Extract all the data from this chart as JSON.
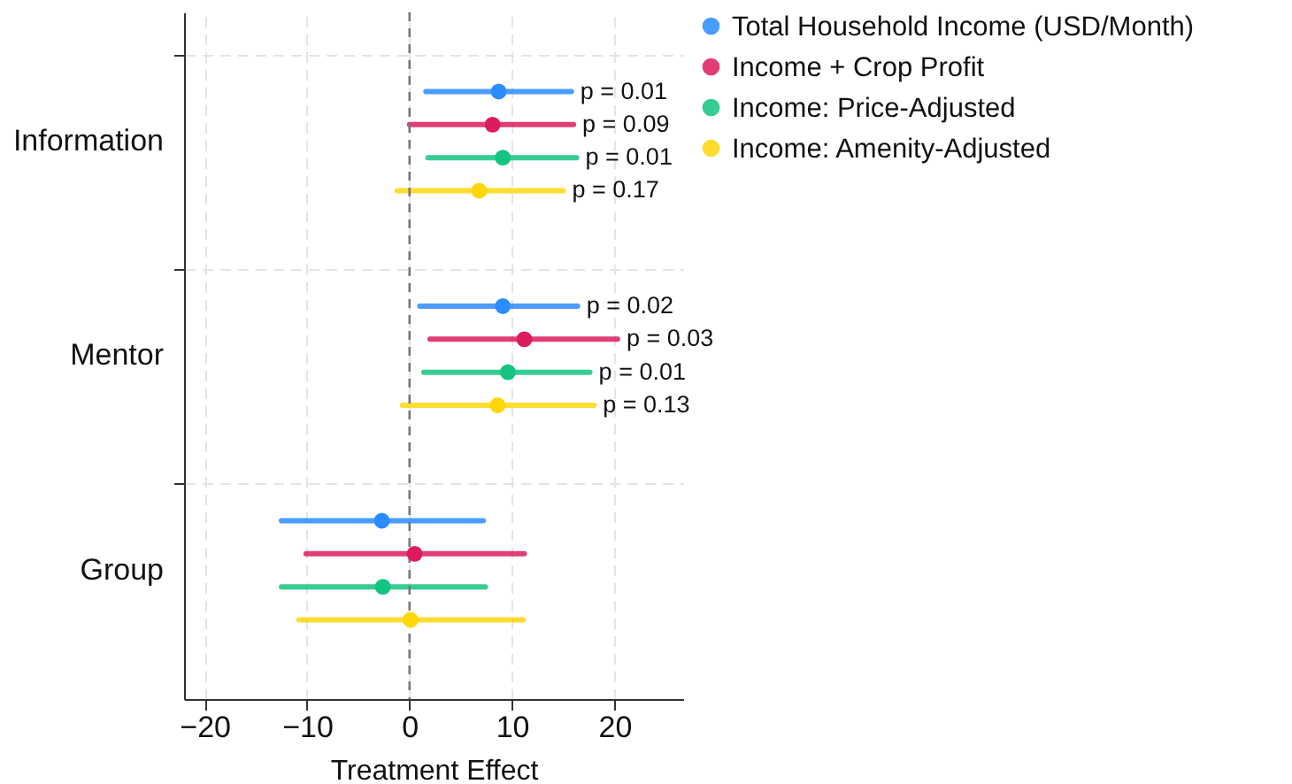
{
  "chart_data": {
    "type": "scatter",
    "orientation": "horizontal",
    "xlabel": "Treatment Effect",
    "categories": [
      "Information",
      "Mentor",
      "Group"
    ],
    "xlim": [
      -22,
      26.7
    ],
    "xticks": [
      -20,
      -10,
      0,
      10,
      20
    ],
    "grid": true,
    "legend": "top right",
    "marker": "circle",
    "ref_lines": [
      {
        "axis": "x",
        "value": 0,
        "line_style": "dashed",
        "color": "#777777"
      }
    ],
    "annotations": [
      "p = 0.01",
      "p = 0.09",
      "p = 0.01",
      "p = 0.17",
      "p = 0.02",
      "p = 0.03",
      "p = 0.01",
      "p = 0.13"
    ],
    "series": [
      {
        "name": "Total Household Income (USD/Month)",
        "color": "#2a8cff",
        "values": [
          8.7,
          9.1,
          -2.7
        ],
        "errors": [
          [
            1.6,
            15.8
          ],
          [
            1.0,
            16.4
          ],
          [
            -12.5,
            7.2
          ]
        ]
      },
      {
        "name": "Income + Crop Profit",
        "color": "#dc1c5c",
        "values": [
          8.1,
          11.2,
          0.5
        ],
        "errors": [
          [
            0.0,
            16.0
          ],
          [
            2.0,
            20.3
          ],
          [
            -10.1,
            11.2
          ]
        ]
      },
      {
        "name": "Income: Price-Adjusted",
        "color": "#14c47f",
        "values": [
          9.1,
          9.6,
          -2.6
        ],
        "errors": [
          [
            1.8,
            16.3
          ],
          [
            1.4,
            17.6
          ],
          [
            -12.5,
            7.4
          ]
        ]
      },
      {
        "name": "Income: Amenity-Adjusted",
        "color": "#ffd60a",
        "values": [
          6.8,
          8.6,
          0.1
        ],
        "errors": [
          [
            -1.2,
            15.0
          ],
          [
            -0.7,
            18.0
          ],
          [
            -10.8,
            11.1
          ]
        ]
      }
    ]
  }
}
